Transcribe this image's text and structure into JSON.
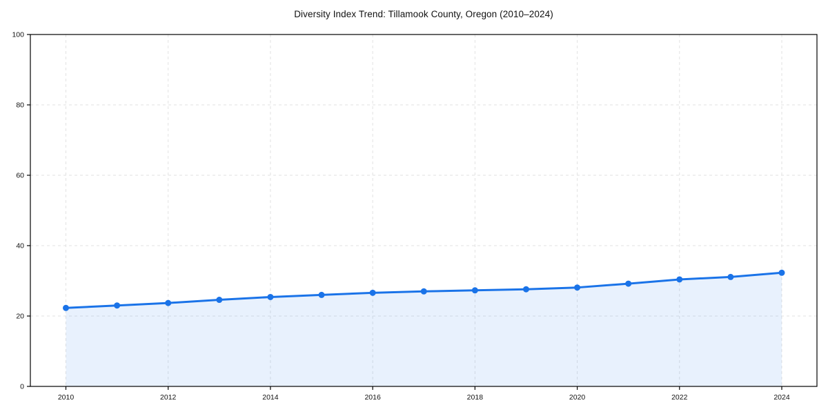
{
  "title": "Diversity Index Trend: Tillamook County, Oregon (2010–2024)",
  "chart_data": {
    "type": "area",
    "title": "Diversity Index Trend: Tillamook County, Oregon (2010–2024)",
    "xlabel": "",
    "ylabel": "",
    "x": [
      2010,
      2011,
      2012,
      2013,
      2014,
      2015,
      2016,
      2017,
      2018,
      2019,
      2020,
      2021,
      2022,
      2023,
      2024
    ],
    "series": [
      {
        "name": "Diversity Index",
        "values": [
          22.3,
          23.0,
          23.7,
          24.6,
          25.4,
          26.0,
          26.6,
          27.0,
          27.3,
          27.6,
          28.1,
          29.2,
          30.4,
          31.1,
          32.3
        ]
      }
    ],
    "ylim": [
      0,
      100
    ],
    "xlim": [
      2010,
      2024
    ],
    "y_ticks": [
      0,
      20,
      40,
      60,
      80,
      100
    ],
    "x_ticks": [
      2010,
      2012,
      2014,
      2016,
      2018,
      2020,
      2022,
      2024
    ],
    "grid": true,
    "grid_style": "dashed",
    "legend": "none",
    "marker": "circle",
    "colors": {
      "line": "#1a73e8",
      "marker": "#1a73e8",
      "fill": "rgba(26,115,232,0.10)",
      "grid": "#e2e2e2",
      "axis": "#000000",
      "tick_text": "#111111",
      "title_text": "#111111",
      "background": "#ffffff"
    }
  }
}
